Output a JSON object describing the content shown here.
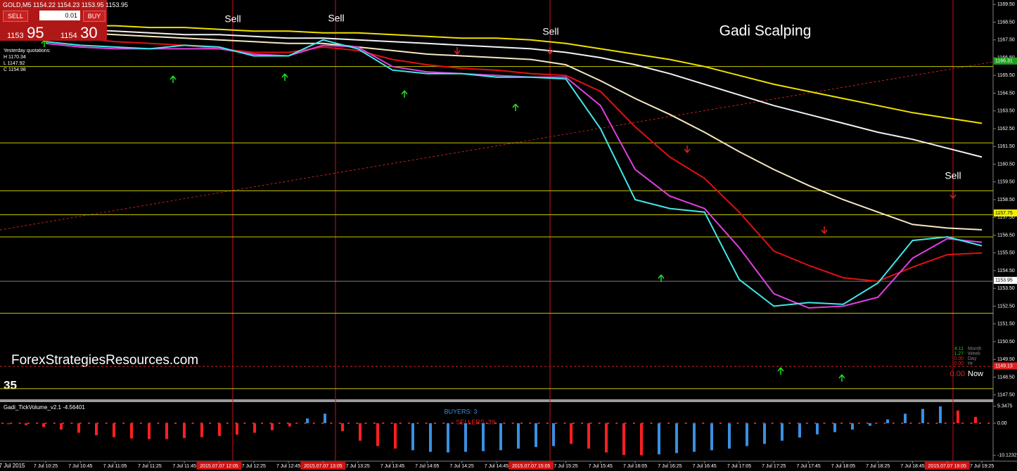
{
  "chart_data": {
    "type": "line",
    "title": "Gadi Scalping",
    "symbol": "GOLD,M5 1154.22 1154.23 1153.95 1153.95",
    "watermark": "ForexStrategiesResources.com",
    "counter": "35",
    "trade_panel": {
      "sell": "SELL",
      "buy": "BUY",
      "lot": "0.01",
      "bid_big": "1153",
      "bid_small": "95",
      "ask_big": "1154",
      "ask_small": "30"
    },
    "yesterday": {
      "title": "Yesterday quotations:",
      "high": "H 1170.34",
      "low": "L 1147.92",
      "close": "C 1154.98"
    },
    "sell_labels": [
      "Sell",
      "Sell",
      "Sell",
      "Sell"
    ],
    "first_date": "7 Jul 2015",
    "categories": [
      "7 Jul 10:25",
      "7 Jul 10:45",
      "7 Jul 11:05",
      "7 Jul 11:25",
      "7 Jul 11:45",
      "2015.07.07 12:05",
      "7 Jul 12:25",
      "7 Jul 12:45",
      "2015.07.07 13:05",
      "7 Jul 13:25",
      "7 Jul 13:45",
      "7 Jul 14:05",
      "7 Jul 14:25",
      "7 Jul 14:45",
      "2015.07.07 15:05",
      "7 Jul 15:25",
      "7 Jul 15:45",
      "7 Jul 16:05",
      "7 Jul 16:25",
      "7 Jul 16:45",
      "7 Jul 17:05",
      "7 Jul 17:25",
      "7 Jul 17:45",
      "7 Jul 18:05",
      "7 Jul 18:25",
      "7 Jul 18:45",
      "2015.07.07 19:05",
      "7 Jul 19:25"
    ],
    "series": [
      {
        "color": "#f0e000",
        "values": [
          1168.4,
          1168.3,
          1168.3,
          1168.2,
          1168.2,
          1168.1,
          1168.0,
          1168.0,
          1167.9,
          1167.9,
          1167.8,
          1167.7,
          1167.6,
          1167.6,
          1167.5,
          1167.3,
          1167.0,
          1166.7,
          1166.4,
          1166.0,
          1165.5,
          1165.0,
          1164.6,
          1164.2,
          1163.8,
          1163.4,
          1163.1,
          1162.8
        ]
      },
      {
        "color": "#f2f2f2",
        "values": [
          1168.2,
          1168.1,
          1168.0,
          1167.9,
          1167.8,
          1167.8,
          1167.7,
          1167.6,
          1167.6,
          1167.5,
          1167.4,
          1167.3,
          1167.2,
          1167.1,
          1167.0,
          1166.8,
          1166.5,
          1166.1,
          1165.6,
          1165.0,
          1164.4,
          1163.8,
          1163.3,
          1162.8,
          1162.3,
          1161.9,
          1161.4,
          1160.9
        ]
      },
      {
        "color": "#f5e8c0",
        "values": [
          1168.0,
          1167.9,
          1167.8,
          1167.7,
          1167.6,
          1167.5,
          1167.4,
          1167.3,
          1167.3,
          1167.1,
          1166.9,
          1166.7,
          1166.6,
          1166.5,
          1166.4,
          1166.1,
          1165.2,
          1164.2,
          1163.3,
          1162.3,
          1161.2,
          1160.2,
          1159.3,
          1158.5,
          1157.8,
          1157.1,
          1156.9,
          1156.8
        ]
      },
      {
        "color": "#e01010",
        "values": [
          1167.8,
          1167.6,
          1167.4,
          1167.3,
          1167.2,
          1167.0,
          1166.8,
          1166.8,
          1167.1,
          1166.9,
          1166.4,
          1166.1,
          1165.9,
          1165.8,
          1165.6,
          1165.5,
          1164.6,
          1162.6,
          1160.9,
          1159.7,
          1157.8,
          1155.6,
          1154.8,
          1154.1,
          1153.9,
          1154.7,
          1155.4,
          1155.5
        ]
      },
      {
        "color": "#e040e0",
        "values": [
          1167.3,
          1167.1,
          1167.0,
          1167.0,
          1167.0,
          1167.0,
          1166.7,
          1166.6,
          1167.2,
          1167.1,
          1166.0,
          1165.7,
          1165.6,
          1165.5,
          1165.4,
          1165.4,
          1163.8,
          1160.2,
          1158.7,
          1158.0,
          1155.8,
          1153.2,
          1152.4,
          1152.5,
          1153.0,
          1155.2,
          1156.3,
          1156.1
        ]
      },
      {
        "color": "#40e8e8",
        "values": [
          1167.4,
          1167.2,
          1167.1,
          1167.0,
          1167.2,
          1167.1,
          1166.6,
          1166.6,
          1167.5,
          1167.0,
          1165.8,
          1165.6,
          1165.6,
          1165.4,
          1165.4,
          1165.3,
          1162.5,
          1158.5,
          1158.0,
          1157.8,
          1154.0,
          1152.5,
          1152.7,
          1152.6,
          1153.8,
          1156.2,
          1156.4,
          1155.9
        ]
      }
    ],
    "levels": [
      {
        "value": 1166.0,
        "color": "#c8c800"
      },
      {
        "value": 1161.7,
        "color": "#c8c800"
      },
      {
        "value": 1159.0,
        "color": "#c8c800"
      },
      {
        "value": 1157.65,
        "color": "#c8c800"
      },
      {
        "value": 1156.4,
        "color": "#c8c800"
      },
      {
        "value": 1153.9,
        "color": "#808080"
      },
      {
        "value": 1152.1,
        "color": "#c8c800"
      },
      {
        "value": 1149.1,
        "color": "#d02020"
      },
      {
        "value": 1147.85,
        "color": "#c8c800"
      }
    ],
    "price_tags": [
      {
        "value": 1166.31,
        "color": "#20a020"
      },
      {
        "value": 1157.75,
        "color": "#f0f000"
      },
      {
        "value": 1153.95,
        "color": "#ffffff"
      },
      {
        "value": 1149.13,
        "color": "#e02020"
      }
    ],
    "ylim": [
      1147.25,
      1169.75
    ],
    "yticks": [
      {
        "value": 1169.5,
        "label": "1169.50"
      },
      {
        "value": 1168.5,
        "label": "1168.50"
      },
      {
        "value": 1167.5,
        "label": "1167.50"
      },
      {
        "value": 1166.5,
        "label": "1166.50"
      },
      {
        "value": 1165.5,
        "label": "1165.50"
      },
      {
        "value": 1164.5,
        "label": "1164.50"
      },
      {
        "value": 1163.5,
        "label": "1163.50"
      },
      {
        "value": 1162.5,
        "label": "1162.50"
      },
      {
        "value": 1161.5,
        "label": "1161.50"
      },
      {
        "value": 1160.5,
        "label": "1160.50"
      },
      {
        "value": 1159.5,
        "label": "1159.50"
      },
      {
        "value": 1158.5,
        "label": "1158.50"
      },
      {
        "value": 1157.5,
        "label": "1157.50"
      },
      {
        "value": 1156.5,
        "label": "1156.50"
      },
      {
        "value": 1155.5,
        "label": "1155.50"
      },
      {
        "value": 1154.5,
        "label": "1154.50"
      },
      {
        "value": 1153.5,
        "label": "1153.50"
      },
      {
        "value": 1152.5,
        "label": "1152.50"
      },
      {
        "value": 1151.5,
        "label": "1151.50"
      },
      {
        "value": 1150.5,
        "label": "1150.50"
      },
      {
        "value": 1149.5,
        "label": "1149.50"
      },
      {
        "value": 1148.5,
        "label": "1148.50"
      },
      {
        "value": 1147.5,
        "label": "1147.50"
      }
    ],
    "stats": [
      {
        "value": "4.11",
        "label": "Month",
        "color": "#20c020"
      },
      {
        "value": "1.27",
        "label": "Week",
        "color": "#20c020"
      },
      {
        "value": "0.00",
        "label": "Day",
        "color": "#e02020"
      },
      {
        "value": "0.00",
        "label": "Hr",
        "color": "#e02020"
      }
    ],
    "now": {
      "value": "0.00",
      "label": "Now"
    },
    "indicator": {
      "type": "bar",
      "title": "Gadi_TickVolume_v2.1 -4.56401",
      "buyers": "BUYERS: 3",
      "sellers": "SELLERS: 39",
      "ylim": [
        -11.5,
        6.2
      ],
      "yticks": [
        5.3475,
        {
          "value": 0,
          "label": "0.00"
        },
        -10.12328
      ],
      "values": [
        -0.3,
        -0.6,
        -1.2,
        -2.0,
        -3.0,
        -3.8,
        -4.4,
        -4.8,
        -5.0,
        -5.0,
        -4.7,
        -4.4,
        -4.0,
        -3.6,
        -3.0,
        -2.2,
        -1.0,
        1.5,
        3.0,
        -2.5,
        -5.5,
        -7.2,
        -8.0,
        -8.5,
        -9.0,
        -9.2,
        -9.0,
        -8.8,
        -8.5,
        -8.0,
        -7.5,
        -7.2,
        -6.5,
        -8.0,
        -9.2,
        -10.0,
        -10.1,
        -9.8,
        -9.4,
        -9.0,
        -8.5,
        -8.0,
        -7.2,
        -6.5,
        -5.5,
        -4.5,
        -3.5,
        -2.8,
        -2.0,
        -0.8,
        1.2,
        3.0,
        4.5,
        5.3,
        4.0,
        2.0
      ],
      "colors": [
        "#ff2020",
        "#ff2020",
        "#ff2020",
        "#ff2020",
        "#ff2020",
        "#ff2020",
        "#ff2020",
        "#ff2020",
        "#ff2020",
        "#ff2020",
        "#ff2020",
        "#ff2020",
        "#ff2020",
        "#ff2020",
        "#ff2020",
        "#ff2020",
        "#ff2020",
        "#3a90e0",
        "#3a90e0",
        "#ff2020",
        "#ff2020",
        "#ff2020",
        "#ff2020",
        "#3a90e0",
        "#3a90e0",
        "#3a90e0",
        "#3a90e0",
        "#3a90e0",
        "#3a90e0",
        "#3a90e0",
        "#3a90e0",
        "#3a90e0",
        "#ff2020",
        "#ff2020",
        "#ff2020",
        "#ff2020",
        "#ff2020",
        "#3a90e0",
        "#3a90e0",
        "#3a90e0",
        "#3a90e0",
        "#3a90e0",
        "#3a90e0",
        "#3a90e0",
        "#3a90e0",
        "#3a90e0",
        "#3a90e0",
        "#3a90e0",
        "#3a90e0",
        "#3a90e0",
        "#3a90e0",
        "#3a90e0",
        "#3a90e0",
        "#3a90e0",
        "#ff2020",
        "#ff2020"
      ]
    }
  }
}
